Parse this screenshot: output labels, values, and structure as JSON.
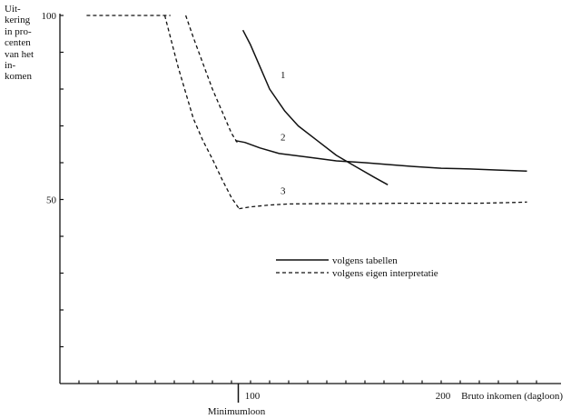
{
  "chart_data": {
    "type": "line",
    "title": "",
    "ylabel_lines": [
      "Uit-",
      "kering",
      "in pro-",
      "centen",
      "van het",
      "in-",
      "komen"
    ],
    "xlabel": "Bruto inkomen (dagloon)",
    "xlim": [
      0,
      260
    ],
    "ylim": [
      0,
      100
    ],
    "y_ticks": [
      0,
      10,
      20,
      30,
      40,
      50,
      60,
      70,
      80,
      90,
      100
    ],
    "y_tick_labels": [
      {
        "value": 100,
        "label": "100"
      },
      {
        "value": 50,
        "label": "50"
      }
    ],
    "x_ticks": [
      10,
      20,
      30,
      40,
      50,
      60,
      70,
      80,
      90,
      100,
      110,
      120,
      130,
      140,
      150,
      160,
      170,
      180,
      190,
      200,
      210,
      220,
      230,
      240,
      250
    ],
    "x_tick_labels": [
      {
        "value": 100,
        "label": "100"
      },
      {
        "value": 200,
        "label": "200"
      }
    ],
    "marker": {
      "value": 95,
      "label": "Minimumloon"
    },
    "series": [
      {
        "curve_label": "1",
        "style": "solid",
        "x": [
          96,
          100,
          105,
          110,
          118,
          125,
          135,
          145,
          155,
          165,
          172
        ],
        "y": [
          96,
          92,
          86,
          80,
          74,
          70,
          66,
          62,
          59,
          56,
          54
        ]
      },
      {
        "curve_label": "2",
        "style": "solid",
        "x": [
          92,
          97,
          105,
          115,
          130,
          145,
          160,
          172,
          185,
          200,
          215,
          230,
          245
        ],
        "y": [
          66,
          65.5,
          64,
          62.5,
          61.5,
          60.5,
          60,
          59.5,
          59,
          58.5,
          58.3,
          58,
          57.7
        ]
      },
      {
        "curve_label": "",
        "style": "dashed",
        "x": [
          14,
          30,
          45,
          55,
          58
        ],
        "y": [
          100,
          100,
          100,
          100,
          100
        ]
      },
      {
        "curve_label": "",
        "style": "dashed",
        "x": [
          55,
          58,
          62,
          66,
          70,
          75,
          80,
          85,
          90,
          94
        ],
        "y": [
          100,
          94,
          86,
          79,
          72,
          66,
          61,
          55.5,
          50.5,
          47.5
        ]
      },
      {
        "curve_label": "",
        "style": "dashed",
        "x": [
          66,
          70,
          75,
          80,
          85,
          90,
          93
        ],
        "y": [
          100,
          94,
          87,
          80,
          74,
          68,
          65.5
        ]
      },
      {
        "curve_label": "3",
        "style": "dashed",
        "x": [
          94,
          100,
          110,
          120,
          140,
          160,
          180,
          200,
          220,
          240,
          245
        ],
        "y": [
          47.5,
          48,
          48.5,
          48.8,
          48.9,
          48.9,
          49,
          49,
          49,
          49.2,
          49.3
        ]
      }
    ],
    "curve_label_positions": [
      {
        "label": "1",
        "x": 117,
        "y": 83
      },
      {
        "label": "2",
        "x": 117,
        "y": 66
      },
      {
        "label": "3",
        "x": 117,
        "y": 51.5
      }
    ],
    "legend": {
      "position": "center-right",
      "entries": [
        {
          "style": "solid",
          "label": "volgens tabellen"
        },
        {
          "style": "dashed",
          "label": "volgens eigen interpretatie"
        }
      ]
    },
    "grid": false
  }
}
